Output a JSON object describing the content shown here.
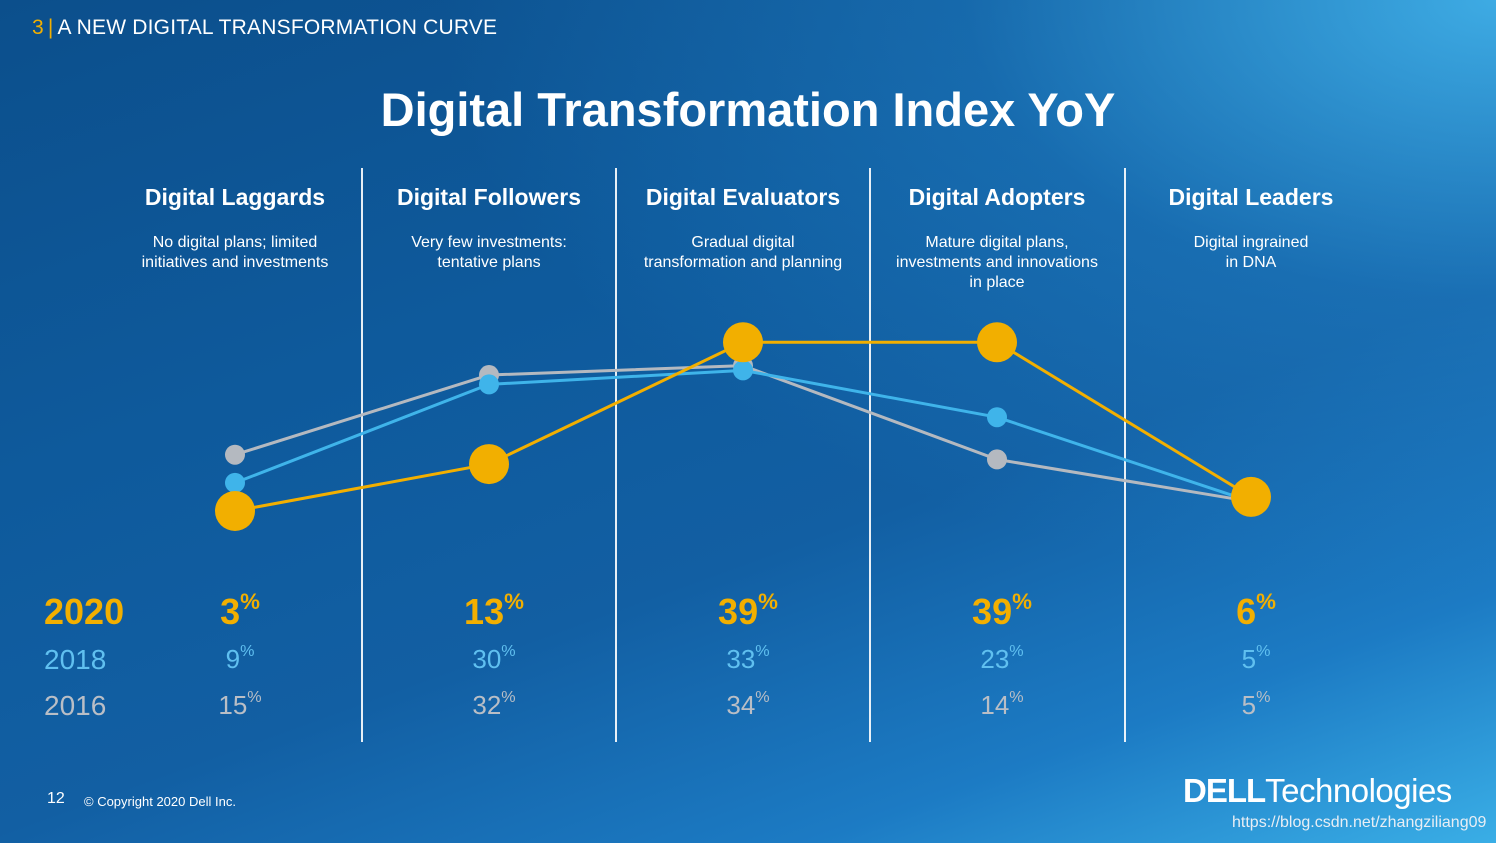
{
  "header": {
    "section_number": "3",
    "section_title": "A NEW DIGITAL TRANSFORMATION CURVE",
    "title": "Digital Transformation Index YoY"
  },
  "chart_data": {
    "type": "line",
    "title": "Digital Transformation Index YoY",
    "categories": [
      "Digital Laggards",
      "Digital Followers",
      "Digital Evaluators",
      "Digital Adopters",
      "Digital Leaders"
    ],
    "descriptions": [
      "No digital plans; limited\ninitiatives and investments",
      "Very few investments:\ntentative plans",
      "Gradual digital\ntransformation and planning",
      "Mature digital plans,\ninvestments and innovations\nin place",
      "Digital ingrained\nin DNA"
    ],
    "series": [
      {
        "name": "2020",
        "values": [
          3,
          13,
          39,
          39,
          6
        ],
        "color": "#f2af00"
      },
      {
        "name": "2018",
        "values": [
          9,
          30,
          33,
          23,
          5
        ],
        "color": "#3fb4ea"
      },
      {
        "name": "2016",
        "values": [
          15,
          32,
          34,
          14,
          5
        ],
        "color": "#b4b9c0"
      }
    ],
    "unit": "%",
    "ylim": [
      0,
      40
    ],
    "grid": false,
    "legend": "left"
  },
  "footer": {
    "page_number": "12",
    "copyright": "© Copyright 2020 Dell Inc.",
    "logo_dell": "DELL",
    "logo_tech": "Technologies",
    "watermark": "https://blog.csdn.net/zhangziliang09"
  }
}
